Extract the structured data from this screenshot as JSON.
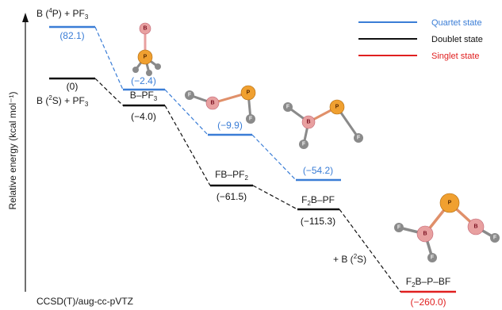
{
  "diagram": {
    "y_axis_label": "Relative energy (kcal mol⁻¹)",
    "method_label": "CCSD(T)/aug-cc-pVTZ",
    "reactant_quartet": {
      "pre": "B (",
      "sup": "4",
      "post": "P) + PF",
      "sub": "3"
    },
    "reactant_doublet": {
      "pre": "B (",
      "sup": "2",
      "post": "S) + PF",
      "sub": "3"
    },
    "added_atom": {
      "pre": "+ B (",
      "sup": "2",
      "post": "S)"
    },
    "colors": {
      "quartet": "#3a7dd6",
      "doublet": "#111111",
      "singlet": "#e02020",
      "boron": "#e8a0a0",
      "phosphorus": "#f0a030",
      "fluorine": "#8a8a8a"
    },
    "legend": [
      {
        "label": "Quartet state",
        "color": "#3a7dd6"
      },
      {
        "label": "Doublet state",
        "color": "#111111"
      },
      {
        "label": "Singlet state",
        "color": "#e02020"
      }
    ],
    "levels": [
      {
        "id": "q0",
        "state": "quartet",
        "value": "(82.1)"
      },
      {
        "id": "d0",
        "state": "doublet",
        "value": "(0)"
      },
      {
        "id": "q1",
        "state": "quartet",
        "value": "(−2.4)"
      },
      {
        "id": "d1",
        "state": "doublet",
        "value": "(−4.0)",
        "species": "B–PF",
        "species_sub": "3"
      },
      {
        "id": "q2",
        "state": "quartet",
        "value": "(−9.9)"
      },
      {
        "id": "d2",
        "state": "doublet",
        "value": "(−61.5)",
        "species": "FB–PF",
        "species_sub": "2"
      },
      {
        "id": "q3",
        "state": "quartet",
        "value": "(−54.2)"
      },
      {
        "id": "d3",
        "state": "doublet",
        "value": "(−115.3)",
        "species_pre": "F",
        "species_pre_sub": "2",
        "species": "B–PF"
      },
      {
        "id": "s4",
        "state": "singlet",
        "value": "(−260.0)",
        "species_pre": "F",
        "species_pre_sub": "2",
        "species": "B–P–BF"
      }
    ],
    "atom_symbols": {
      "boron": "B",
      "phosphorus": "P",
      "fluorine": "F"
    }
  }
}
